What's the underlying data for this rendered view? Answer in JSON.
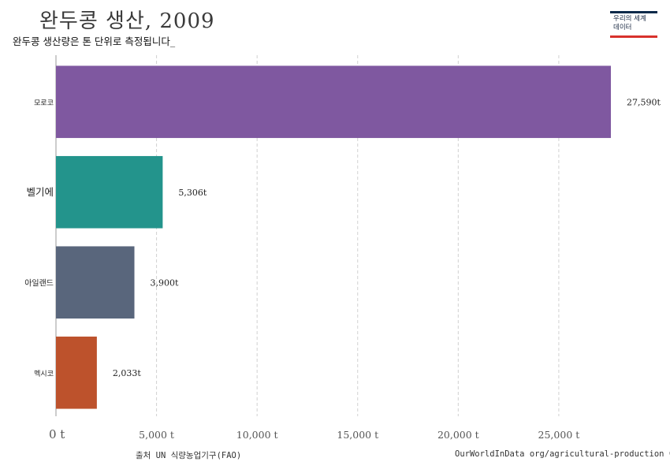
{
  "title": "완두콩 생산, 2009",
  "subtitle": "완두콩 생산량은 톤 단위로 측정됩니다_",
  "logo": {
    "line1": "우리의 세계",
    "line2": "데이터"
  },
  "footer": {
    "source": "출처 UN 식량농업기구(FAO)",
    "credit": "OurWorldInData org/agricultural-production CC BY"
  },
  "colors": {
    "Morocco": "#7f58a0",
    "Belgium": "#23948c",
    "Ireland": "#59667c",
    "Mexico": "#bd522c",
    "grid": "#d0d0d0"
  },
  "chart_data": {
    "type": "bar",
    "orientation": "horizontal",
    "title": "완두콩 생산, 2009",
    "subtitle": "완두콩 생산량은 톤 단위로 측정됩니다_",
    "categories": [
      "모로코",
      "벨기에",
      "아일랜드",
      "멕시코"
    ],
    "values": [
      27590,
      5306,
      3900,
      2033
    ],
    "value_labels": [
      "27,590t",
      "5,306t",
      "3,900t",
      "2,033t"
    ],
    "bar_colors": [
      "#7f58a0",
      "#23948c",
      "#59667c",
      "#bd522c"
    ],
    "xlim": [
      0,
      27590
    ],
    "xticks": [
      0,
      5000,
      10000,
      15000,
      20000,
      25000
    ],
    "xtick_labels": [
      "0 t",
      "5,000 t",
      "10,000 t",
      "15,000 t",
      "20,000 t",
      "25,000 t"
    ],
    "xlabel": "",
    "ylabel": "",
    "grid": true
  }
}
